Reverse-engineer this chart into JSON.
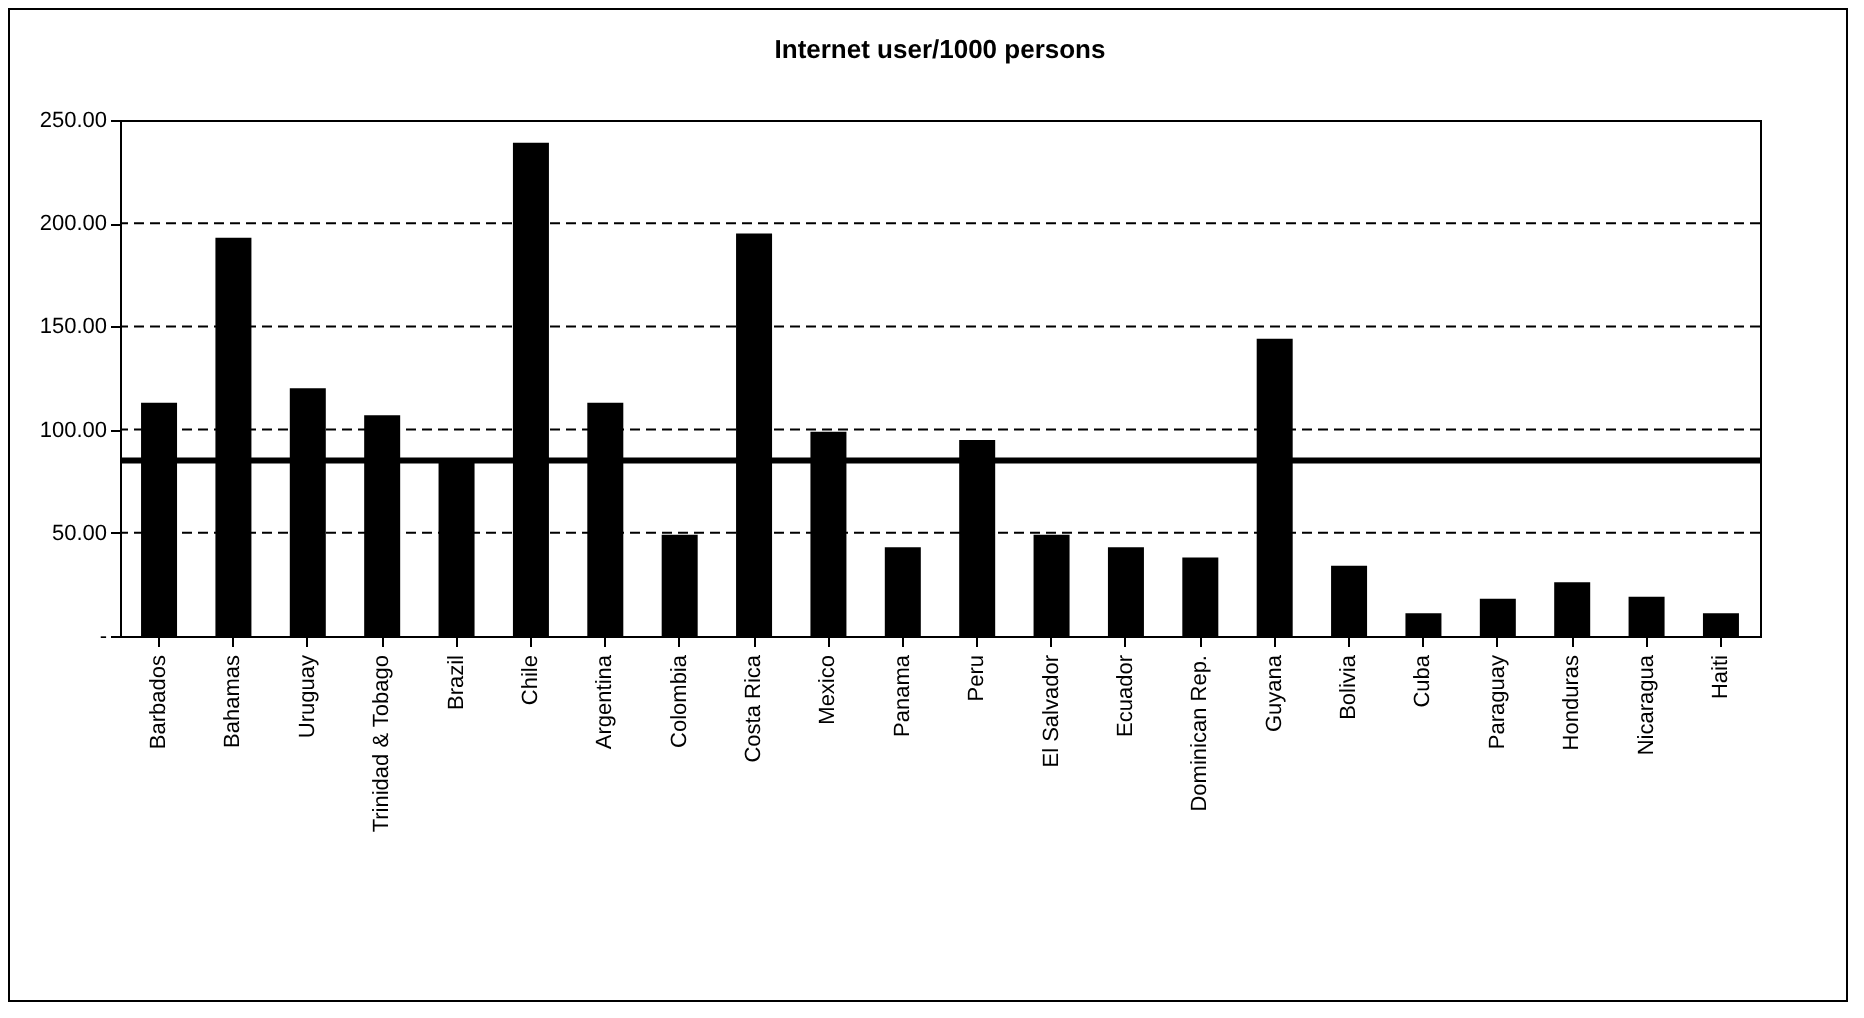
{
  "chart_data": {
    "type": "bar",
    "title": "Internet user/1000 persons",
    "categories": [
      "Barbados",
      "Bahamas",
      "Uruguay",
      "Trinidad & Tobago",
      "Brazil",
      "Chile",
      "Argentina",
      "Colombia",
      "Costa Rica",
      "Mexico",
      "Panama",
      "Peru",
      "El Salvador",
      "Ecuador",
      "Dominican Rep.",
      "Guyana",
      "Bolivia",
      "Cuba",
      "Paraguay",
      "Honduras",
      "Nicaragua",
      "Haiti"
    ],
    "values": [
      113,
      193,
      120,
      107,
      85,
      239,
      113,
      49,
      195,
      99,
      43,
      95,
      49,
      43,
      38,
      144,
      34,
      11,
      18,
      26,
      19,
      11
    ],
    "color": "#000000",
    "ylim": [
      0,
      250
    ],
    "yticks": [
      {
        "value": 0,
        "label": "-"
      },
      {
        "value": 50,
        "label": "50.00"
      },
      {
        "value": 100,
        "label": "100.00"
      },
      {
        "value": 150,
        "label": "150.00"
      },
      {
        "value": 200,
        "label": "200.00"
      },
      {
        "value": 250,
        "label": "250.00"
      }
    ],
    "grid": "y",
    "ref_lines": [
      {
        "axis": "y",
        "value": 85,
        "line_style": "solid",
        "color": "#000000"
      }
    ]
  }
}
